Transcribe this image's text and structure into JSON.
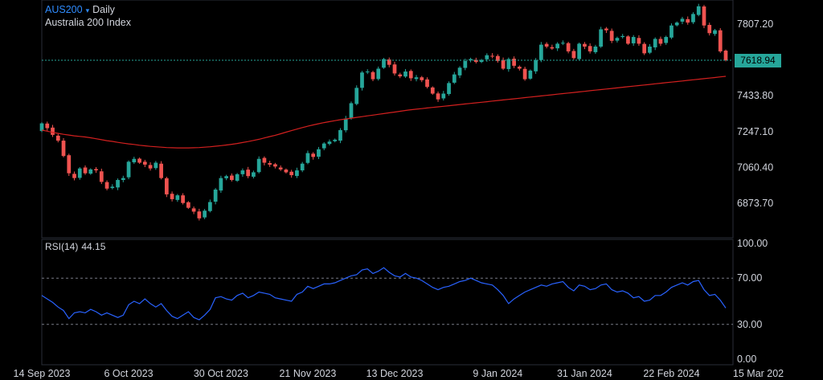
{
  "header": {
    "symbol": "AUS200",
    "caret": "▾",
    "timeframe": "Daily",
    "description": "Australia 200 Index"
  },
  "last_price": "7618.94",
  "rsi_header": {
    "label": "RSI(14)",
    "value": "44.15"
  },
  "colors": {
    "up": "#26a69a",
    "down": "#ef5350",
    "ma": "#d3201f",
    "rsi": "#2962ff",
    "grid": "#2a2e39",
    "axis_text": "#d1d4dc",
    "dotted_price": "#26a69a"
  },
  "chart_data": [
    {
      "type": "candlestick",
      "title": "AUS200 Daily",
      "subtitle": "Australia 200 Index",
      "y_ticks": [
        "7807.20",
        "7433.80",
        "7247.10",
        "7060.40",
        "6873.70"
      ],
      "ylim": [
        6780,
        7900
      ],
      "x_ticks": [
        "14 Sep 2023",
        "6 Oct 2023",
        "30 Oct 2023",
        "21 Nov 2023",
        "13 Dec 2023",
        "9 Jan 2024",
        "31 Jan 2024",
        "22 Feb 2024",
        "15 Mar 202"
      ],
      "x_tick_index": [
        0,
        16,
        33,
        49,
        65,
        84,
        100,
        116,
        132
      ],
      "last_price": 7618.94,
      "closes": [
        7290,
        7265,
        7230,
        7200,
        7120,
        7030,
        7005,
        7055,
        7030,
        7050,
        7045,
        6985,
        6950,
        6960,
        6995,
        7005,
        7090,
        7105,
        7085,
        7075,
        7055,
        7085,
        7005,
        6920,
        6895,
        6915,
        6875,
        6850,
        6830,
        6795,
        6835,
        6880,
        6945,
        7005,
        7015,
        6995,
        7025,
        7045,
        7015,
        7035,
        7105,
        7085,
        7075,
        7065,
        7050,
        7035,
        7020,
        7045,
        7080,
        7135,
        7115,
        7155,
        7185,
        7195,
        7205,
        7255,
        7315,
        7395,
        7475,
        7555,
        7560,
        7520,
        7575,
        7625,
        7595,
        7550,
        7535,
        7560,
        7525,
        7530,
        7515,
        7480,
        7445,
        7415,
        7445,
        7500,
        7545,
        7580,
        7615,
        7625,
        7610,
        7620,
        7645,
        7640,
        7615,
        7575,
        7625,
        7590,
        7575,
        7520,
        7565,
        7620,
        7700,
        7690,
        7680,
        7705,
        7710,
        7665,
        7630,
        7705,
        7690,
        7665,
        7690,
        7780,
        7775,
        7720,
        7735,
        7745,
        7705,
        7740,
        7705,
        7655,
        7690,
        7730,
        7705,
        7740,
        7800,
        7815,
        7835,
        7815,
        7860,
        7900,
        7800,
        7760,
        7775,
        7665,
        7618.94
      ],
      "ma": [
        7255,
        7249,
        7243,
        7238,
        7233,
        7229,
        7225,
        7222,
        7219,
        7215,
        7210,
        7205,
        7200,
        7196,
        7191,
        7187,
        7183,
        7180,
        7176,
        7173,
        7170,
        7168,
        7166,
        7164,
        7163,
        7162,
        7162,
        7162,
        7163,
        7164,
        7166,
        7168,
        7171,
        7174,
        7177,
        7181,
        7185,
        7190,
        7195,
        7201,
        7207,
        7214,
        7221,
        7228,
        7236,
        7244,
        7252,
        7260,
        7268,
        7275,
        7282,
        7288,
        7294,
        7299,
        7304,
        7309,
        7313,
        7317,
        7321,
        7325,
        7329,
        7333,
        7337,
        7341,
        7345,
        7349,
        7353,
        7357,
        7361,
        7364,
        7367,
        7370,
        7373,
        7376,
        7379,
        7382,
        7385,
        7388,
        7391,
        7394,
        7397,
        7400,
        7403,
        7406,
        7409,
        7412,
        7415,
        7418,
        7421,
        7424,
        7427,
        7430,
        7433,
        7436,
        7439,
        7442,
        7445,
        7448,
        7451,
        7454,
        7457,
        7460,
        7463,
        7466,
        7469,
        7472,
        7475,
        7478,
        7481,
        7484,
        7487,
        7490,
        7493,
        7496,
        7499,
        7502,
        7505,
        7508,
        7511,
        7514,
        7517,
        7520,
        7523,
        7526,
        7529,
        7532,
        7535
      ]
    },
    {
      "type": "line",
      "title": "RSI(14)",
      "value_label": "44.15",
      "y_ticks": [
        "100.00",
        "70.00",
        "30.00",
        "0.00"
      ],
      "ylim": [
        0,
        100
      ],
      "bands": [
        30,
        70
      ],
      "values": [
        55,
        52,
        49,
        45,
        42,
        35,
        40,
        41,
        40,
        43,
        41,
        38,
        40,
        38,
        36,
        38,
        47,
        50,
        48,
        52,
        48,
        45,
        48,
        42,
        37,
        35,
        38,
        41,
        36,
        34,
        38,
        43,
        53,
        54,
        52,
        51,
        55,
        57,
        53,
        55,
        58,
        57,
        56,
        53,
        52,
        51,
        50,
        56,
        58,
        63,
        61,
        63,
        65,
        65,
        66,
        68,
        70,
        72,
        73,
        77,
        78,
        74,
        76,
        79,
        75,
        72,
        71,
        74,
        71,
        70,
        68,
        65,
        62,
        60,
        62,
        63,
        65,
        67,
        68,
        70,
        68,
        66,
        65,
        64,
        60,
        55,
        48,
        52,
        55,
        58,
        60,
        62,
        64,
        63,
        65,
        66,
        67,
        62,
        59,
        64,
        63,
        60,
        61,
        64,
        65,
        60,
        58,
        59,
        57,
        53,
        54,
        50,
        51,
        55,
        55,
        58,
        62,
        64,
        66,
        64,
        67,
        68,
        60,
        55,
        56,
        51,
        44.15
      ]
    }
  ]
}
